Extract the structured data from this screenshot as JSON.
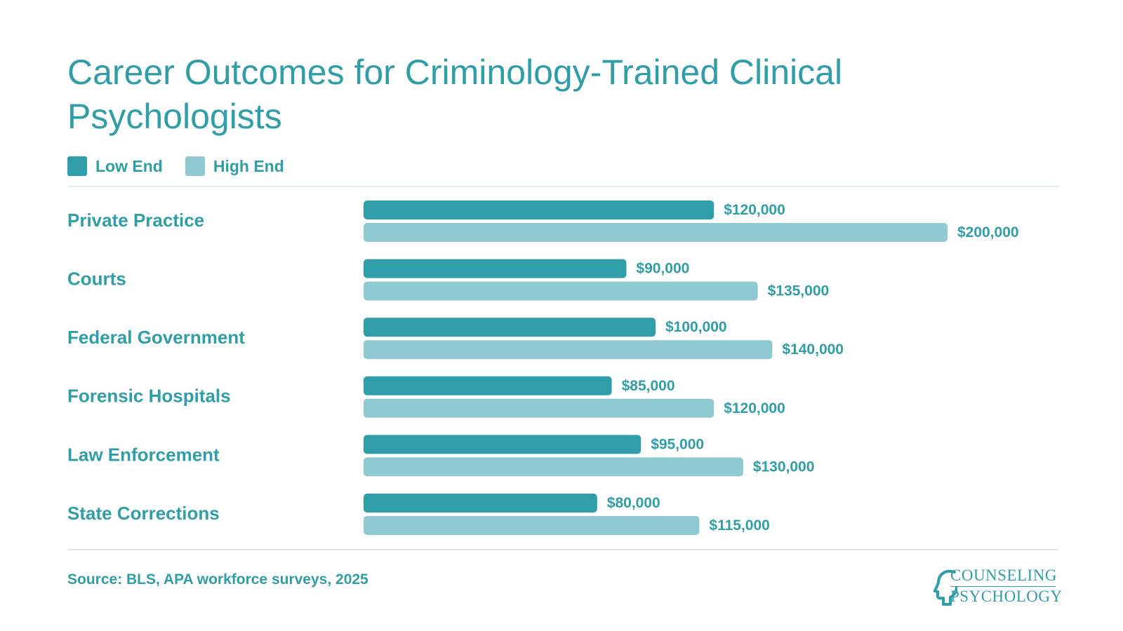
{
  "title": "Career Outcomes for Criminology-Trained Clinical Psychologists",
  "legend": [
    {
      "label": "Low End",
      "color": "#2f9ea8"
    },
    {
      "label": "High End",
      "color": "#8fc9d1"
    }
  ],
  "chart_data": {
    "type": "bar",
    "orientation": "horizontal",
    "title": "Career Outcomes for Criminology-Trained Clinical Psychologists",
    "categories": [
      "Private Practice",
      "Courts",
      "Federal Government",
      "Forensic Hospitals",
      "Law Enforcement",
      "State Corrections"
    ],
    "series": [
      {
        "name": "Low End",
        "color": "#2f9ea8",
        "values": [
          120000,
          90000,
          100000,
          85000,
          95000,
          80000
        ],
        "labels": [
          "$120,000",
          "$90,000",
          "$100,000",
          "$85,000",
          "$95,000",
          "$80,000"
        ]
      },
      {
        "name": "High End",
        "color": "#8fc9d1",
        "values": [
          200000,
          135000,
          140000,
          120000,
          130000,
          115000
        ],
        "labels": [
          "$200,000",
          "$135,000",
          "$140,000",
          "$120,000",
          "$130,000",
          "$115,000"
        ]
      }
    ],
    "xlim": [
      0,
      200000
    ],
    "legend_position": "top-left",
    "grid": false
  },
  "source": "Source: BLS, APA workforce surveys, 2025",
  "logo": {
    "line1": "COUNSELING",
    "line2": "PSYCHOLOGY",
    "icon": "head-profile-icon"
  }
}
